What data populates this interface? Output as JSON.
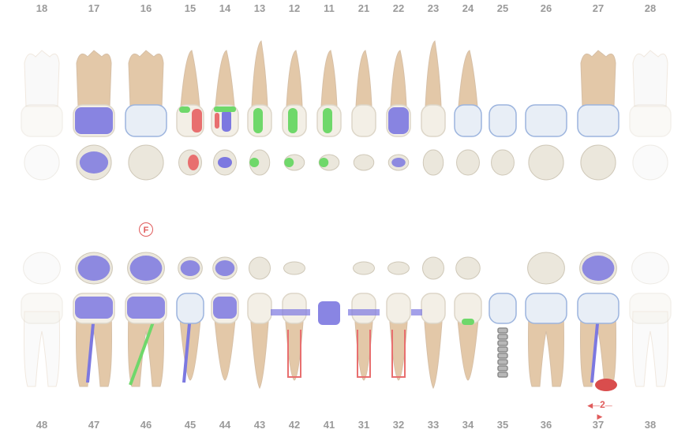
{
  "upper_numbers": [
    "18",
    "17",
    "16",
    "15",
    "14",
    "13",
    "12",
    "11",
    "21",
    "22",
    "23",
    "24",
    "25",
    "26",
    "27",
    "28"
  ],
  "lower_numbers": [
    "48",
    "47",
    "46",
    "45",
    "44",
    "43",
    "42",
    "41",
    "31",
    "32",
    "33",
    "34",
    "35",
    "36",
    "37",
    "38"
  ],
  "badge_text": "F",
  "gap_label": "2",
  "legend_colors": {
    "filling": "#7c78e0",
    "secondary_caries": "#6fd86a",
    "caries": "#e86f6f",
    "crown": "#e8eef6",
    "crown_outline": "#9cb4de",
    "root": "#e3c8a8",
    "enamel": "#f3efe6",
    "missing": "#eeeeee"
  },
  "upper_teeth": [
    {
      "num": "18",
      "status": "missing",
      "type": "molar",
      "crown": "none"
    },
    {
      "num": "17",
      "status": "present",
      "type": "molar",
      "crown": "filling",
      "canal": true
    },
    {
      "num": "16",
      "status": "present",
      "type": "molar",
      "crown": "crown"
    },
    {
      "num": "15",
      "status": "present",
      "type": "premolar",
      "crown": "caries-green-red"
    },
    {
      "num": "14",
      "status": "present",
      "type": "premolar",
      "crown": "filling-green-red"
    },
    {
      "num": "13",
      "status": "present",
      "type": "canine",
      "crown": "green"
    },
    {
      "num": "12",
      "status": "present",
      "type": "incisor",
      "crown": "green"
    },
    {
      "num": "11",
      "status": "present",
      "type": "incisor",
      "crown": "green"
    },
    {
      "num": "21",
      "status": "present",
      "type": "incisor",
      "crown": "none"
    },
    {
      "num": "22",
      "status": "present",
      "type": "incisor",
      "crown": "filling"
    },
    {
      "num": "23",
      "status": "present",
      "type": "canine",
      "crown": "none"
    },
    {
      "num": "24",
      "status": "present",
      "type": "premolar",
      "crown": "crown"
    },
    {
      "num": "25",
      "status": "bridge-pontic",
      "type": "premolar",
      "crown": "crown"
    },
    {
      "num": "26",
      "status": "bridge-pontic",
      "type": "molar",
      "crown": "crown"
    },
    {
      "num": "27",
      "status": "present",
      "type": "molar",
      "crown": "crown"
    },
    {
      "num": "28",
      "status": "missing",
      "type": "molar",
      "crown": "none"
    }
  ],
  "lower_teeth": [
    {
      "num": "48",
      "status": "missing",
      "type": "molar"
    },
    {
      "num": "47",
      "status": "present",
      "type": "molar",
      "crown": "filling",
      "canal": "filling"
    },
    {
      "num": "46",
      "status": "present",
      "type": "molar",
      "crown": "filling",
      "canal": "green"
    },
    {
      "num": "45",
      "status": "present",
      "type": "premolar",
      "crown": "crown",
      "canal": "filling"
    },
    {
      "num": "44",
      "status": "present",
      "type": "premolar",
      "crown": "filling"
    },
    {
      "num": "43",
      "status": "present",
      "type": "canine",
      "crown": "none"
    },
    {
      "num": "42",
      "status": "present",
      "type": "incisor",
      "crown": "none",
      "canal": "red"
    },
    {
      "num": "41",
      "status": "bridge-pontic",
      "type": "incisor"
    },
    {
      "num": "31",
      "status": "present",
      "type": "incisor",
      "crown": "none",
      "canal": "red"
    },
    {
      "num": "32",
      "status": "present",
      "type": "incisor",
      "crown": "none",
      "canal": "red"
    },
    {
      "num": "33",
      "status": "present",
      "type": "canine",
      "crown": "none"
    },
    {
      "num": "34",
      "status": "present",
      "type": "premolar",
      "crown": "green"
    },
    {
      "num": "35",
      "status": "implant",
      "type": "premolar",
      "crown": "crown"
    },
    {
      "num": "36",
      "status": "present",
      "type": "molar",
      "crown": "crown"
    },
    {
      "num": "37",
      "status": "present",
      "type": "molar",
      "crown": "crown",
      "canal": "filling",
      "lesion": true
    },
    {
      "num": "38",
      "status": "missing",
      "type": "molar"
    }
  ]
}
